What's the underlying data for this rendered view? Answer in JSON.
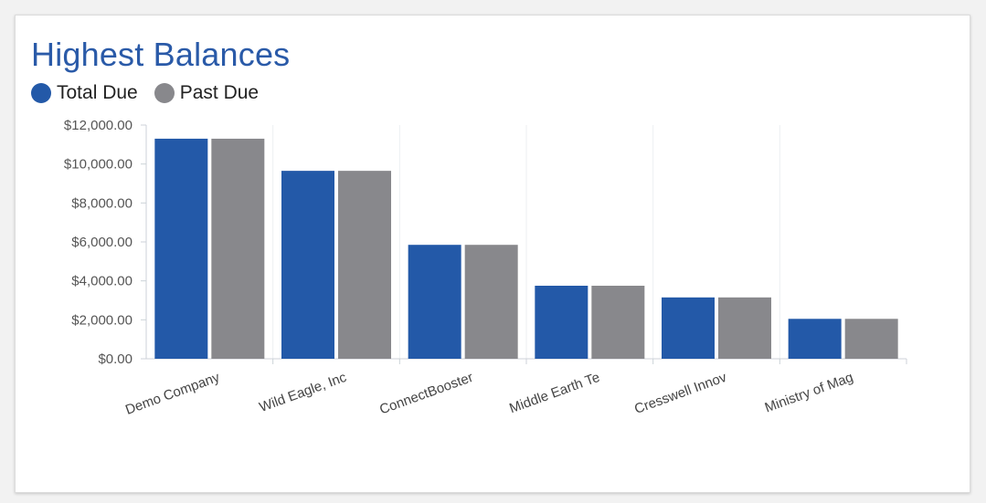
{
  "card": {
    "title": "Highest Balances"
  },
  "chart_data": {
    "type": "bar",
    "title": "Highest Balances",
    "categories": [
      "Demo Company",
      "Wild Eagle, Inc",
      "ConnectBooster",
      "Middle Earth Te",
      "Cresswell Innov",
      "Ministry of Mag"
    ],
    "series": [
      {
        "name": "Total Due",
        "color": "#2359a8",
        "values": [
          11300,
          9650,
          5850,
          3750,
          3150,
          2050
        ]
      },
      {
        "name": "Past Due",
        "color": "#88888c",
        "values": [
          11300,
          9650,
          5850,
          3750,
          3150,
          2050
        ]
      }
    ],
    "yticks": [
      "$0.00",
      "$2,000.00",
      "$4,000.00",
      "$6,000.00",
      "$8,000.00",
      "$10,000.00",
      "$12,000.00"
    ],
    "ylim": [
      0,
      12000
    ],
    "xlabel": "",
    "ylabel": "",
    "grid": "vertical",
    "legend_position": "top-left"
  }
}
